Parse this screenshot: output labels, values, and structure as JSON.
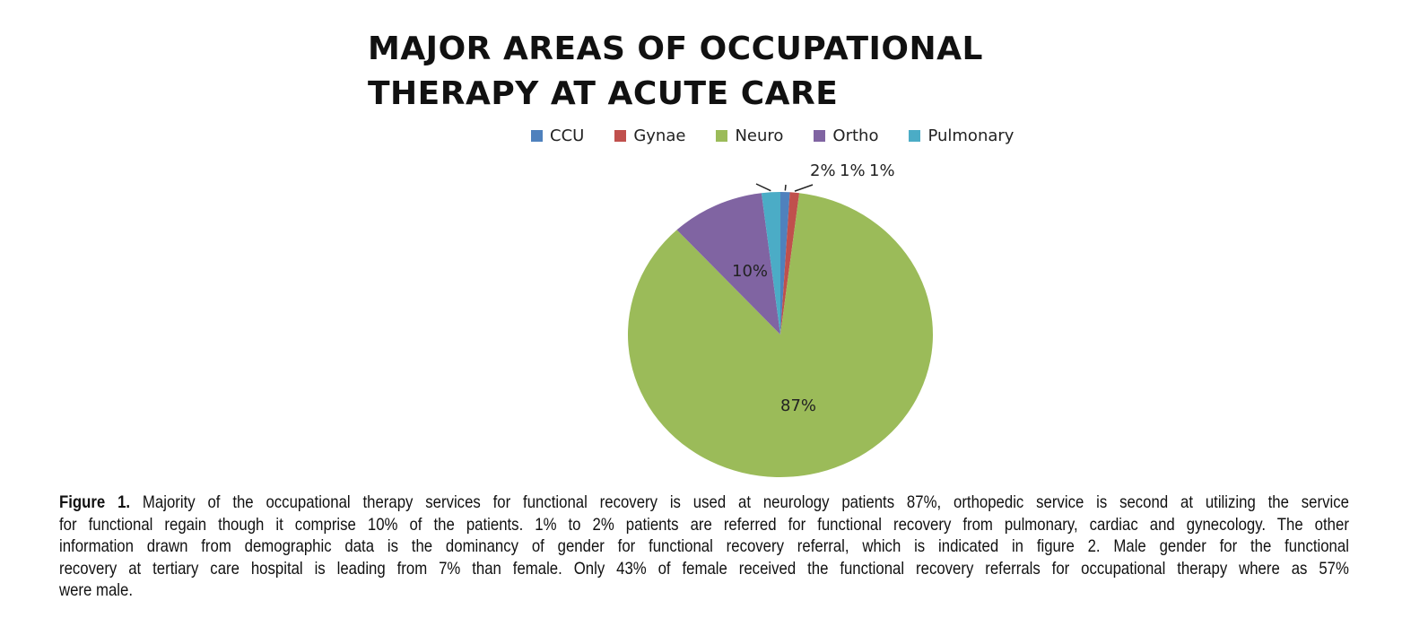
{
  "chart_data": {
    "type": "pie",
    "title": "MAJOR AREAS OF OCCUPATIONAL THERAPY AT ACUTE CARE",
    "title_lines": [
      "MAJOR AREAS OF OCCUPATIONAL",
      "THERAPY AT ACUTE CARE"
    ],
    "legend_position": "top",
    "categories": [
      "CCU",
      "Gynae",
      "Neuro",
      "Ortho",
      "Pulmonary"
    ],
    "values": [
      1,
      1,
      87,
      10,
      2
    ],
    "data_labels": [
      "1%",
      "1%",
      "87%",
      "10%",
      "2%"
    ],
    "colors": [
      "#4F81BD",
      "#C0504D",
      "#9BBB59",
      "#8064A2",
      "#4BACC6"
    ]
  },
  "caption": {
    "label": "Figure 1.",
    "lines": [
      " Majority of the occupational therapy services for functional recovery is used at neurology patients 87%, orthopedic service is second at utilizing the service",
      "for functional regain though it comprise  10% of the patients. 1% to 2% patients are referred for functional recovery from pulmonary, cardiac and gynecology. The other",
      "information drawn from demographic data is the dominancy of gender for functional recovery referral, which is indicated in figure 2. Male gender for the functional",
      "recovery at tertiary care hospital is leading from 7% than female.  Only 43% of female received the functional recovery referrals for occupational therapy where as 57%",
      "were male."
    ]
  }
}
